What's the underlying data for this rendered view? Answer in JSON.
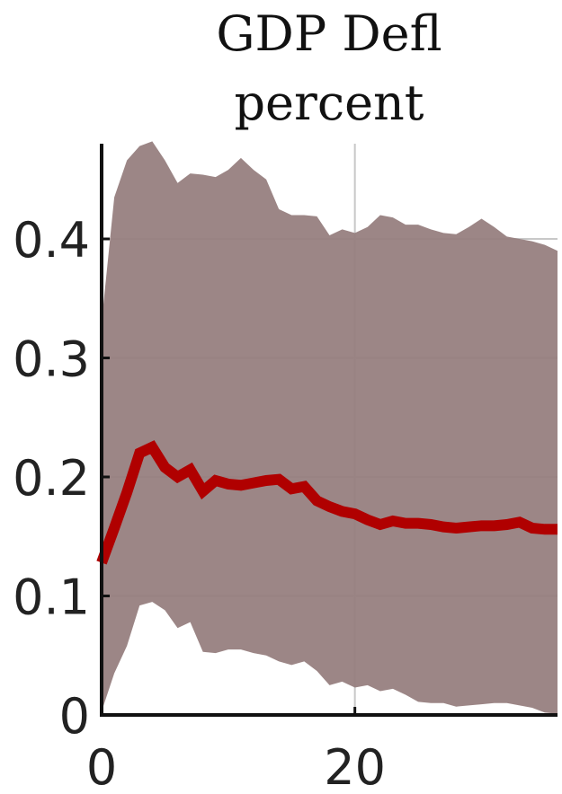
{
  "chart_data": {
    "type": "area",
    "title": "GDP Defl",
    "subtitle": "percent",
    "xlabel": "",
    "ylabel": "",
    "xlim": [
      0,
      36
    ],
    "ylim": [
      0,
      0.48
    ],
    "x_ticks": [
      0,
      20
    ],
    "x_tick_labels": [
      "0",
      "20"
    ],
    "y_ticks": [
      0,
      0.1,
      0.2,
      0.3,
      0.4
    ],
    "y_tick_labels": [
      "0",
      "0.1",
      "0.2",
      "0.3",
      "0.4"
    ],
    "grid": true,
    "legend": "none",
    "x": [
      0,
      1,
      2,
      3,
      4,
      5,
      6,
      7,
      8,
      9,
      10,
      11,
      12,
      13,
      14,
      15,
      16,
      17,
      18,
      19,
      20,
      21,
      22,
      23,
      24,
      25,
      26,
      27,
      28,
      29,
      30,
      31,
      32,
      33,
      34,
      35,
      36
    ],
    "series": [
      {
        "role": "median",
        "values": [
          0.128,
          0.157,
          0.187,
          0.22,
          0.225,
          0.208,
          0.2,
          0.206,
          0.188,
          0.197,
          0.194,
          0.193,
          0.195,
          0.197,
          0.198,
          0.19,
          0.192,
          0.18,
          0.175,
          0.171,
          0.169,
          0.164,
          0.16,
          0.163,
          0.161,
          0.161,
          0.16,
          0.158,
          0.157,
          0.158,
          0.159,
          0.159,
          0.16,
          0.162,
          0.157,
          0.156,
          0.156
        ]
      },
      {
        "role": "upper-band",
        "values": [
          0.33,
          0.435,
          0.466,
          0.478,
          0.482,
          0.466,
          0.447,
          0.455,
          0.454,
          0.452,
          0.458,
          0.468,
          0.458,
          0.45,
          0.425,
          0.42,
          0.42,
          0.419,
          0.403,
          0.408,
          0.405,
          0.41,
          0.42,
          0.418,
          0.412,
          0.412,
          0.408,
          0.405,
          0.404,
          0.41,
          0.417,
          0.41,
          0.402,
          0.4,
          0.398,
          0.395,
          0.39
        ]
      },
      {
        "role": "lower-band",
        "values": [
          0.003,
          0.035,
          0.058,
          0.092,
          0.095,
          0.088,
          0.073,
          0.078,
          0.053,
          0.052,
          0.055,
          0.055,
          0.052,
          0.05,
          0.045,
          0.042,
          0.045,
          0.037,
          0.025,
          0.028,
          0.023,
          0.025,
          0.02,
          0.022,
          0.017,
          0.011,
          0.01,
          0.01,
          0.007,
          0.008,
          0.009,
          0.01,
          0.01,
          0.008,
          0.006,
          0.002,
          0.001
        ]
      }
    ]
  },
  "colors": {
    "band_fill": "#978080",
    "median_line": "#b00000",
    "axis": "#111111",
    "grid": "#c8c8c8"
  }
}
